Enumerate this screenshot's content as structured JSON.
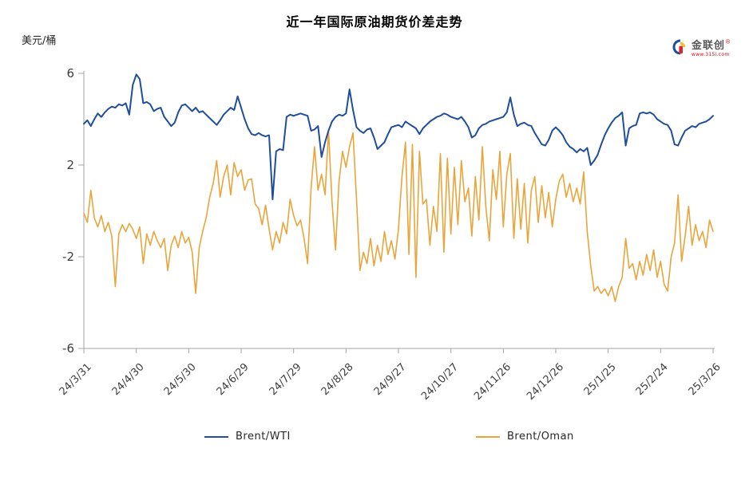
{
  "title": "近一年国际原油期货价差走势",
  "y_axis_unit": "美元/桶",
  "logo": {
    "name": "金联创",
    "reg": "®",
    "site": "www.315i.com"
  },
  "colors": {
    "brent_wti": "#1F4E9B",
    "brent_oman": "#E9A53C",
    "axis": "#A6A6A6",
    "text": "#3d3d3d"
  },
  "chart_data": {
    "type": "line",
    "title": "近一年国际原油期货价差走势",
    "xlabel": "",
    "ylabel": "美元/桶",
    "ylim": [
      -6,
      6
    ],
    "yticks": [
      6,
      2,
      -2,
      -6
    ],
    "grid": false,
    "legend_position": "bottom",
    "x_tick_labels": [
      "24/3/31",
      "24/4/30",
      "24/5/30",
      "24/6/29",
      "24/7/29",
      "24/8/28",
      "24/9/27",
      "24/10/27",
      "24/11/26",
      "24/12/26",
      "25/1/25",
      "25/2/24",
      "25/3/26"
    ],
    "series": [
      {
        "name": "Brent/WTI",
        "color": "#1F4E9B",
        "values": [
          3.8,
          3.95,
          3.7,
          4.0,
          4.25,
          4.1,
          4.3,
          4.45,
          4.55,
          4.5,
          4.65,
          4.6,
          4.7,
          4.2,
          5.5,
          5.95,
          5.75,
          4.7,
          4.75,
          4.65,
          4.35,
          4.45,
          4.5,
          4.1,
          3.9,
          3.7,
          3.85,
          4.3,
          4.6,
          4.65,
          4.5,
          4.35,
          4.5,
          4.3,
          4.35,
          4.2,
          4.05,
          3.9,
          3.75,
          3.95,
          4.2,
          4.35,
          4.5,
          4.4,
          5.0,
          4.5,
          4.0,
          3.6,
          3.35,
          3.3,
          3.4,
          3.3,
          3.25,
          3.3,
          0.5,
          2.6,
          2.7,
          2.65,
          4.1,
          4.2,
          4.15,
          4.2,
          4.25,
          4.2,
          4.15,
          3.5,
          3.55,
          3.7,
          2.35,
          3.0,
          3.5,
          3.9,
          4.1,
          4.2,
          4.15,
          4.25,
          5.3,
          4.4,
          3.65,
          3.5,
          3.4,
          3.55,
          3.6,
          3.2,
          2.7,
          2.85,
          3.0,
          3.35,
          3.65,
          3.7,
          3.75,
          3.65,
          3.9,
          3.8,
          3.7,
          3.6,
          3.35,
          3.6,
          3.75,
          3.9,
          4.0,
          4.1,
          4.15,
          4.25,
          4.2,
          4.1,
          4.05,
          4.0,
          4.1,
          3.9,
          3.65,
          3.2,
          3.3,
          3.6,
          3.75,
          3.8,
          3.9,
          3.95,
          4.0,
          4.05,
          4.1,
          4.3,
          4.95,
          4.2,
          3.7,
          3.8,
          3.85,
          3.75,
          3.7,
          3.4,
          3.15,
          2.9,
          2.85,
          3.1,
          3.5,
          3.65,
          3.5,
          3.3,
          3.0,
          2.8,
          2.7,
          2.55,
          2.7,
          2.6,
          2.75,
          2.0,
          2.2,
          2.45,
          2.9,
          3.3,
          3.6,
          3.85,
          4.05,
          4.15,
          4.3,
          2.85,
          3.6,
          3.7,
          3.75,
          4.25,
          4.3,
          4.25,
          4.3,
          4.2,
          4.0,
          3.9,
          3.8,
          3.75,
          3.5,
          2.9,
          2.85,
          3.2,
          3.5,
          3.6,
          3.7,
          3.65,
          3.8,
          3.85,
          3.9,
          4.0,
          4.15
        ]
      },
      {
        "name": "Brent/Oman",
        "color": "#E9A53C",
        "values": [
          -0.1,
          -0.5,
          0.9,
          -0.3,
          -0.7,
          -0.2,
          -0.9,
          -0.5,
          -1.1,
          -3.3,
          -1.0,
          -0.6,
          -0.9,
          -0.55,
          -0.8,
          -1.2,
          -0.7,
          -2.3,
          -1.0,
          -1.5,
          -0.9,
          -1.3,
          -1.6,
          -1.2,
          -2.6,
          -1.5,
          -1.1,
          -1.6,
          -0.9,
          -1.4,
          -1.15,
          -1.8,
          -3.6,
          -1.6,
          -0.9,
          -0.3,
          0.6,
          1.2,
          2.2,
          0.6,
          1.5,
          2.0,
          0.7,
          2.1,
          1.5,
          1.8,
          0.9,
          1.35,
          1.4,
          0.3,
          0.1,
          -0.6,
          0.25,
          -0.8,
          -1.7,
          -0.9,
          -1.4,
          -0.5,
          -1.0,
          0.5,
          -0.2,
          -0.65,
          -0.4,
          -1.2,
          -2.3,
          1.0,
          2.8,
          0.9,
          1.6,
          0.7,
          3.5,
          0.4,
          -1.7,
          1.3,
          2.6,
          1.9,
          2.8,
          3.4,
          0.5,
          -2.6,
          -1.8,
          -2.3,
          -1.2,
          -2.4,
          -1.5,
          -2.2,
          -0.9,
          -1.9,
          -1.3,
          -2.1,
          -0.8,
          1.5,
          3.0,
          -1.9,
          2.9,
          -2.9,
          2.6,
          0.3,
          0.5,
          -1.5,
          0.2,
          -0.9,
          2.5,
          -1.8,
          2.3,
          -1.0,
          1.9,
          -0.6,
          2.2,
          0.4,
          1.0,
          -1.1,
          1.5,
          -0.4,
          2.8,
          0.2,
          -1.3,
          1.8,
          0.5,
          2.6,
          -0.7,
          1.6,
          2.5,
          -1.2,
          1.4,
          -0.8,
          1.2,
          -1.4,
          0.9,
          1.5,
          -0.5,
          1.1,
          -0.3,
          0.8,
          -0.7,
          0.5,
          1.3,
          1.6,
          0.6,
          1.2,
          0.4,
          1.0,
          0.3,
          1.7,
          -0.9,
          -2.4,
          -3.5,
          -3.3,
          -3.6,
          -3.4,
          -3.7,
          -3.3,
          -3.95,
          -3.3,
          -2.9,
          -1.2,
          -2.5,
          -2.3,
          -3.0,
          -2.2,
          -2.8,
          -1.9,
          -2.6,
          -1.7,
          -2.9,
          -2.2,
          -3.2,
          -3.5,
          -2.0,
          -1.4,
          0.7,
          -2.2,
          -1.1,
          0.2,
          -1.5,
          -0.6,
          -1.3,
          -0.9,
          -1.6,
          -0.4,
          -0.9
        ]
      }
    ]
  }
}
